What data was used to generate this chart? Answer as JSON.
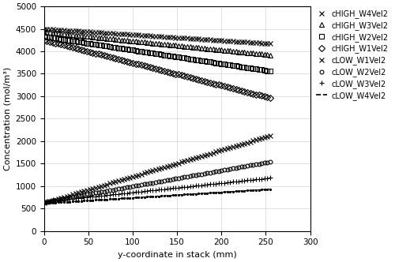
{
  "xlabel": "y-coordinate in stack (mm)",
  "ylabel": "Concentration (mol/m³)",
  "xlim": [
    0,
    300
  ],
  "ylim": [
    0,
    5000
  ],
  "xticks": [
    0,
    50,
    100,
    150,
    200,
    250,
    300
  ],
  "yticks": [
    0,
    500,
    1000,
    1500,
    2000,
    2500,
    3000,
    3500,
    4000,
    4500,
    5000
  ],
  "series": [
    {
      "label": "cHIGH_W4Vel2",
      "x0": 0,
      "x1": 255,
      "y0": 4500,
      "y1": 4170,
      "marker": "x",
      "linestyle": "none",
      "markerfacecolor": "black",
      "legend_marker": "x",
      "legend_line": "none"
    },
    {
      "label": "cHIGH_W3Vel2",
      "x0": 0,
      "x1": 255,
      "y0": 4430,
      "y1": 3920,
      "marker": "^",
      "linestyle": "none",
      "markerfacecolor": "none",
      "legend_marker": "^",
      "legend_line": "none"
    },
    {
      "label": "cHIGH_W2Vel2",
      "x0": 0,
      "x1": 255,
      "y0": 4330,
      "y1": 3560,
      "marker": "s",
      "linestyle": "none",
      "markerfacecolor": "none",
      "legend_marker": "s",
      "legend_line": "none"
    },
    {
      "label": "cHIGH_W1Vel2",
      "x0": 0,
      "x1": 255,
      "y0": 4250,
      "y1": 2960,
      "marker": "D",
      "linestyle": "none",
      "markerfacecolor": "none",
      "legend_marker": "D",
      "legend_line": "none"
    },
    {
      "label": "cLOW_W1Vel2",
      "x0": 0,
      "x1": 255,
      "y0": 620,
      "y1": 2120,
      "marker": "x",
      "linestyle": "none",
      "markerfacecolor": "black",
      "legend_marker": "x",
      "legend_line": "none"
    },
    {
      "label": "cLOW_W2Vel2",
      "x0": 0,
      "x1": 255,
      "y0": 640,
      "y1": 1540,
      "marker": "o",
      "linestyle": "none",
      "markerfacecolor": "none",
      "legend_marker": "o",
      "legend_line": "none"
    },
    {
      "label": "cLOW_W3Vel2",
      "x0": 0,
      "x1": 255,
      "y0": 650,
      "y1": 1180,
      "marker": "+",
      "linestyle": "none",
      "markerfacecolor": "black",
      "legend_marker": "+",
      "legend_line": "none"
    },
    {
      "label": "cLOW_W4Vel2",
      "x0": 0,
      "x1": 255,
      "y0": 615,
      "y1": 930,
      "marker": ".",
      "linestyle": "--",
      "markerfacecolor": "black",
      "legend_marker": "none",
      "legend_line": "--"
    }
  ],
  "figsize": [
    5.0,
    3.32
  ],
  "dpi": 100,
  "background_color": "#ffffff",
  "legend_fontsize": 7,
  "axis_fontsize": 8,
  "tick_fontsize": 7.5,
  "n_markers": 80,
  "markersize_small": 3,
  "markersize_large": 4
}
